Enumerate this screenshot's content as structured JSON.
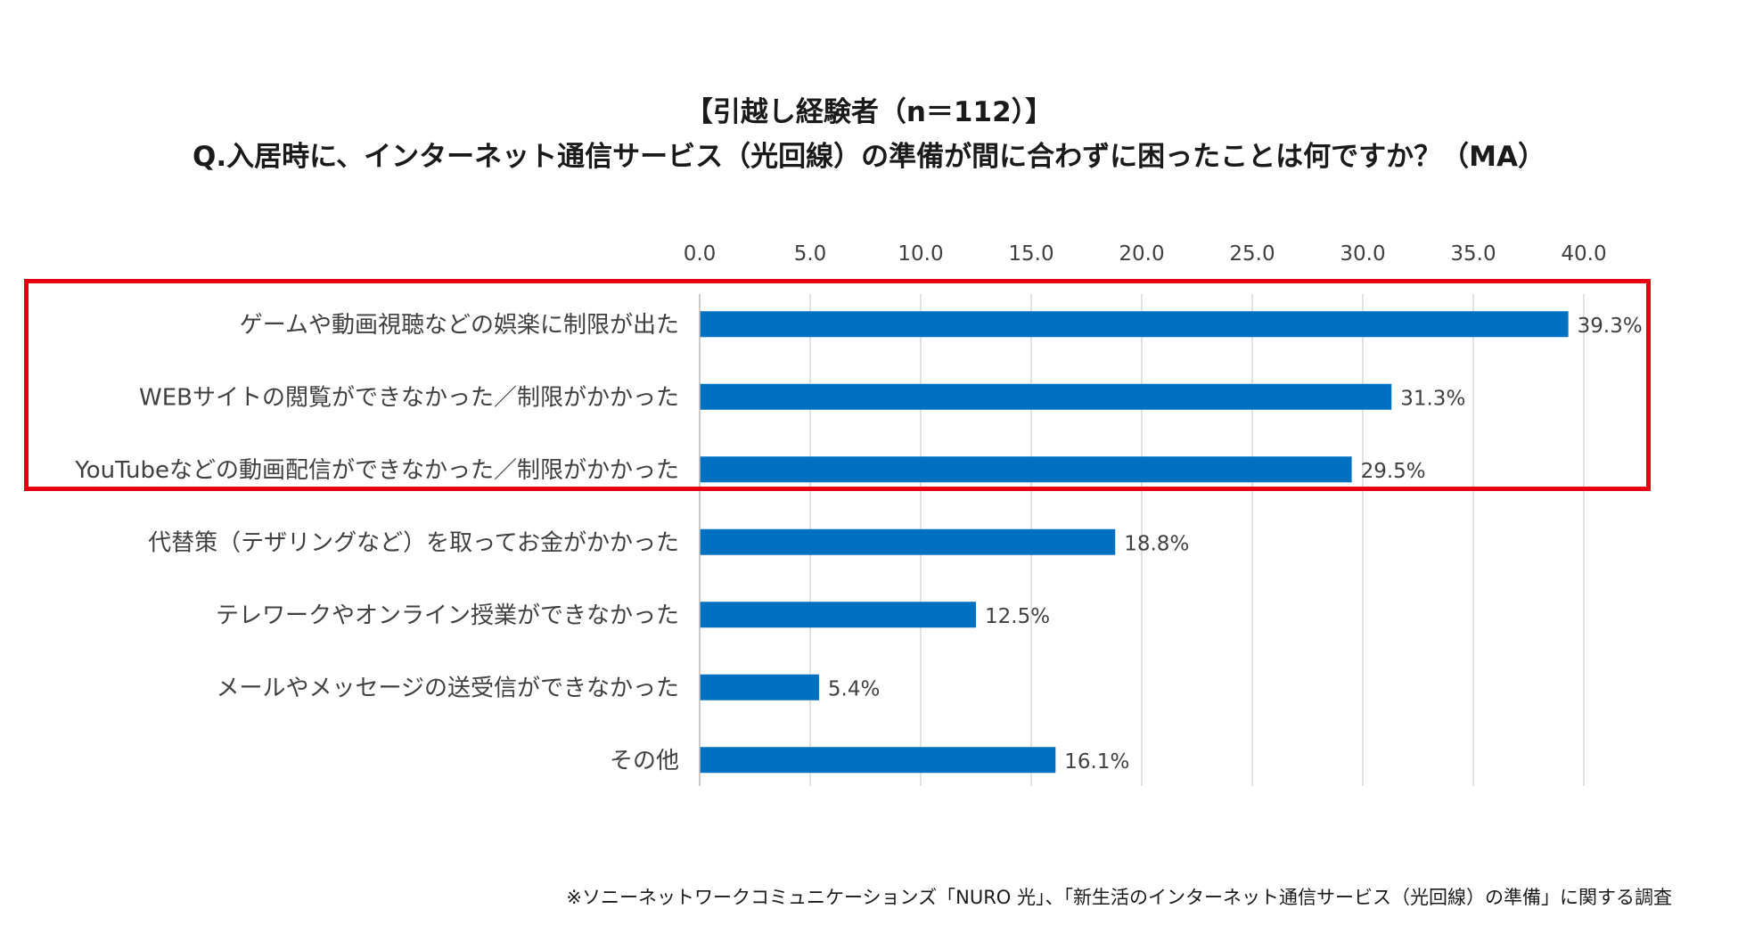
{
  "header": {
    "title": "【引越し経験者（n＝112）】",
    "subtitle": "Q.入居時に、インターネット通信サービス（光回線）の準備が間に合わずに困ったことは何ですか？（MA）"
  },
  "chart_data": {
    "type": "bar",
    "orientation": "horizontal",
    "categories": [
      "ゲームや動画視聴などの娯楽に制限が出た",
      "WEBサイトの閲覧ができなかった／制限がかかった",
      "YouTubeなどの動画配信ができなかった／制限がかかった",
      "代替策（テザリングなど）を取ってお金がかかった",
      "テレワークやオンライン授業ができなかった",
      "メールやメッセージの送受信ができなかった",
      "その他"
    ],
    "values": [
      39.3,
      31.3,
      29.5,
      18.8,
      12.5,
      5.4,
      16.1
    ],
    "data_labels": [
      "39.3%",
      "31.3%",
      "29.5%",
      "18.8%",
      "12.5%",
      "5.4%",
      "16.1%"
    ],
    "xlim": [
      0,
      40
    ],
    "ticks": [
      0,
      5,
      10,
      15,
      20,
      25,
      30,
      35,
      40
    ],
    "tick_labels": [
      "0.0",
      "5.0",
      "10.0",
      "15.0",
      "20.0",
      "25.0",
      "30.0",
      "35.0",
      "40.0"
    ],
    "axis_position": "top",
    "grid": true,
    "bar_color": "#0070c0",
    "grid_color": "#d9d9d9",
    "highlighted_categories": [
      0,
      1,
      2
    ],
    "highlight_color": "#e60012"
  },
  "footnote": "※ソニーネットワークコミュニケーションズ「NURO 光」、「新生活のインターネット通信サービス（光回線）の準備」に関する調査"
}
